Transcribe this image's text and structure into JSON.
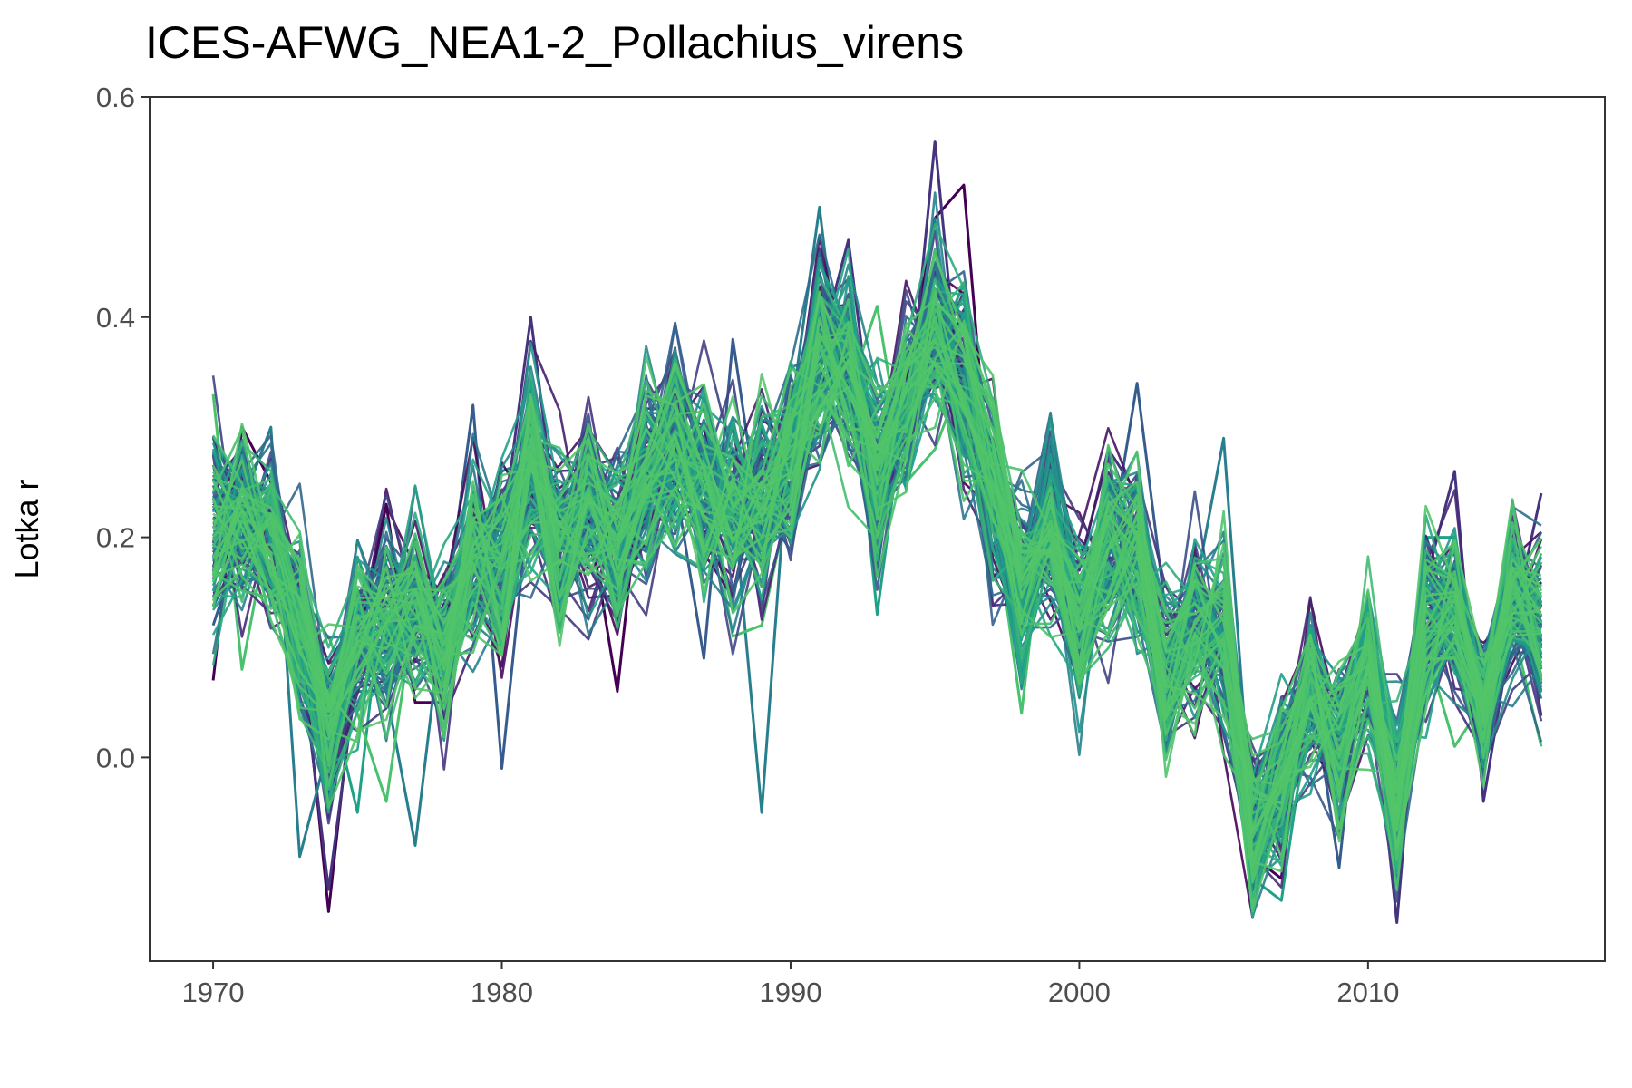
{
  "chart_data": {
    "type": "line",
    "title": "ICES-AFWG_NEA1-2_Pollachius_virens",
    "xlabel": "",
    "ylabel": "Lotka r",
    "xlim": [
      1967.8,
      2018.2
    ],
    "ylim": [
      -0.185,
      0.6
    ],
    "x_ticks": [
      1970,
      1980,
      1990,
      2000,
      2010
    ],
    "y_ticks": [
      0.0,
      0.2,
      0.4,
      0.6
    ],
    "x_tick_labels": [
      "1970",
      "1980",
      "1990",
      "2000",
      "2010"
    ],
    "y_tick_labels": [
      "0.0",
      "0.2",
      "0.4",
      "0.6"
    ],
    "grid": false,
    "legend": "none",
    "palette": [
      "#440154",
      "#46337e",
      "#365c8d",
      "#277f8e",
      "#1fa187",
      "#4ac16d",
      "#54c568"
    ],
    "n_series": 120,
    "x": [
      1970,
      1971,
      1972,
      1973,
      1974,
      1975,
      1976,
      1977,
      1978,
      1979,
      1980,
      1981,
      1982,
      1983,
      1984,
      1985,
      1986,
      1987,
      1988,
      1989,
      1990,
      1991,
      1992,
      1993,
      1994,
      1995,
      1996,
      1997,
      1998,
      1999,
      2000,
      2001,
      2002,
      2003,
      2004,
      2005,
      2006,
      2007,
      2008,
      2009,
      2010,
      2011,
      2012,
      2013,
      2014,
      2015,
      2016
    ],
    "central_series": {
      "name": "central trajectory",
      "values": [
        0.205,
        0.215,
        0.2,
        0.12,
        0.03,
        0.11,
        0.12,
        0.14,
        0.1,
        0.18,
        0.17,
        0.27,
        0.2,
        0.23,
        0.2,
        0.25,
        0.28,
        0.25,
        0.23,
        0.24,
        0.27,
        0.36,
        0.35,
        0.27,
        0.33,
        0.4,
        0.34,
        0.24,
        0.16,
        0.21,
        0.13,
        0.19,
        0.19,
        0.08,
        0.12,
        0.11,
        -0.06,
        -0.02,
        0.06,
        0.01,
        0.08,
        -0.03,
        0.12,
        0.14,
        0.04,
        0.14,
        0.12
      ]
    },
    "spread_sd": [
      0.045,
      0.045,
      0.04,
      0.04,
      0.04,
      0.04,
      0.045,
      0.04,
      0.035,
      0.04,
      0.045,
      0.045,
      0.045,
      0.045,
      0.045,
      0.045,
      0.045,
      0.045,
      0.045,
      0.045,
      0.04,
      0.045,
      0.045,
      0.045,
      0.04,
      0.045,
      0.045,
      0.045,
      0.04,
      0.045,
      0.045,
      0.045,
      0.045,
      0.04,
      0.04,
      0.045,
      0.04,
      0.04,
      0.04,
      0.04,
      0.04,
      0.045,
      0.04,
      0.04,
      0.035,
      0.04,
      0.04
    ],
    "series": [
      {
        "name": "",
        "color": "#440154",
        "values": [
          0.07,
          0.3,
          0.25,
          0.12,
          -0.14,
          0.1,
          0.23,
          0.05,
          0.05,
          0.2,
          0.18,
          0.28,
          0.2,
          0.22,
          0.06,
          0.3,
          0.26,
          0.3,
          0.2,
          0.23,
          0.3,
          0.36,
          0.38,
          0.28,
          0.34,
          0.49,
          0.52,
          0.21,
          0.18,
          0.22,
          0.12,
          0.2,
          0.18,
          0.05,
          0.15,
          0.1,
          -0.09,
          -0.11,
          0.12,
          -0.02,
          0.07,
          -0.06,
          0.13,
          0.14,
          0.05,
          0.15,
          0.14
        ]
      },
      {
        "name": "",
        "color": "#46337e",
        "values": [
          0.25,
          0.28,
          0.19,
          0.1,
          -0.12,
          0.08,
          0.1,
          0.2,
          0.07,
          0.17,
          0.2,
          0.4,
          0.19,
          0.24,
          0.21,
          0.27,
          0.33,
          0.24,
          0.17,
          0.25,
          0.28,
          0.37,
          0.47,
          0.26,
          0.29,
          0.56,
          0.29,
          0.19,
          0.21,
          0.19,
          0.17,
          0.28,
          0.24,
          0.05,
          0.11,
          0.12,
          -0.05,
          -0.04,
          0.04,
          -0.06,
          0.1,
          -0.15,
          0.16,
          0.26,
          -0.04,
          0.12,
          0.24
        ]
      },
      {
        "name": "",
        "color": "#365c8d",
        "values": [
          0.12,
          0.2,
          0.17,
          0.11,
          -0.05,
          0.13,
          0.16,
          0.15,
          0.12,
          0.32,
          -0.01,
          0.25,
          0.23,
          0.21,
          0.23,
          0.21,
          0.25,
          0.09,
          0.38,
          0.2,
          0.31,
          0.44,
          0.35,
          0.2,
          0.31,
          0.42,
          0.32,
          0.28,
          0.12,
          0.23,
          0.15,
          0.18,
          0.34,
          0.13,
          0.11,
          0.09,
          -0.02,
          0.01,
          0.07,
          -0.1,
          0.15,
          -0.02,
          0.13,
          0.12,
          0.07,
          0.2,
          0.14
        ]
      },
      {
        "name": "",
        "color": "#277f8e",
        "values": [
          0.29,
          0.23,
          0.3,
          -0.09,
          0.01,
          0.06,
          0.06,
          -0.08,
          0.14,
          0.17,
          0.26,
          0.27,
          0.16,
          0.26,
          0.24,
          0.19,
          0.27,
          0.21,
          0.24,
          -0.05,
          0.31,
          0.5,
          0.28,
          0.27,
          0.34,
          0.39,
          0.35,
          0.19,
          0.15,
          0.27,
          0.11,
          0.2,
          0.17,
          0.09,
          0.15,
          0.29,
          -0.07,
          -0.02,
          0.11,
          0.04,
          0.08,
          -0.04,
          0.15,
          0.13,
          0.1,
          0.16,
          0.11
        ]
      },
      {
        "name": "",
        "color": "#1fa187",
        "values": [
          0.17,
          0.18,
          0.17,
          0.08,
          0.06,
          -0.05,
          0.18,
          0.17,
          0.1,
          0.15,
          0.19,
          0.3,
          0.21,
          0.22,
          0.19,
          0.28,
          0.22,
          0.26,
          0.18,
          0.18,
          0.24,
          0.33,
          0.39,
          0.13,
          0.33,
          0.37,
          0.43,
          0.24,
          0.15,
          0.23,
          0.06,
          0.25,
          0.16,
          0.12,
          0.14,
          0.11,
          -0.11,
          -0.13,
          0.05,
          0.03,
          0.11,
          -0.03,
          0.2,
          0.2,
          0.03,
          0.13,
          0.09
        ]
      },
      {
        "name": "",
        "color": "#4ac16d",
        "values": [
          0.33,
          0.08,
          0.22,
          0.08,
          0.11,
          0.04,
          -0.04,
          0.14,
          0.13,
          0.22,
          0.19,
          0.24,
          0.19,
          0.25,
          0.2,
          0.22,
          0.31,
          0.26,
          0.11,
          0.12,
          0.24,
          0.3,
          0.33,
          0.41,
          0.25,
          0.28,
          0.35,
          0.23,
          0.04,
          0.27,
          0.13,
          0.15,
          0.22,
          0.07,
          0.1,
          0.12,
          -0.12,
          -0.06,
          0.06,
          0.02,
          0.06,
          -0.03,
          0.1,
          0.01,
          0.05,
          0.12,
          0.01
        ]
      }
    ]
  }
}
